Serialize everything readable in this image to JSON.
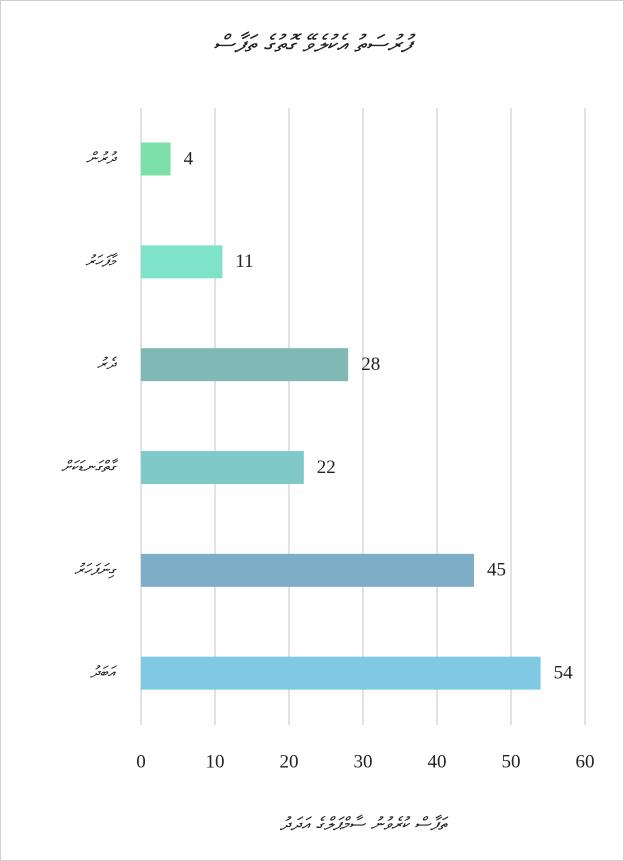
{
  "chart_data": {
    "type": "hbar",
    "title": "ފުރުސަތު އެކުލެވޭ ގޮތުގެ ތަފާސް",
    "x_label": "ތަފާސް ކުރެވުނު ސާމްޕަލްގެ އަދަދު",
    "categories": [
      "ދުރުން",
      "މާފަހަރު",
      "ދެރު",
      "ގާތްގަނޑަކަށް",
      "ގިނަފަހަރު",
      "އަބަދު"
    ],
    "values": [
      4,
      11,
      28,
      22,
      45,
      54
    ],
    "colors": [
      "#7ddfa9",
      "#7fe3c9",
      "#7fb8b5",
      "#80c9c9",
      "#7eaec7",
      "#80c9e5"
    ],
    "xlim": [
      0,
      60
    ],
    "xticks": [
      0,
      10,
      20,
      30,
      40,
      50,
      60
    ],
    "grid": true
  }
}
